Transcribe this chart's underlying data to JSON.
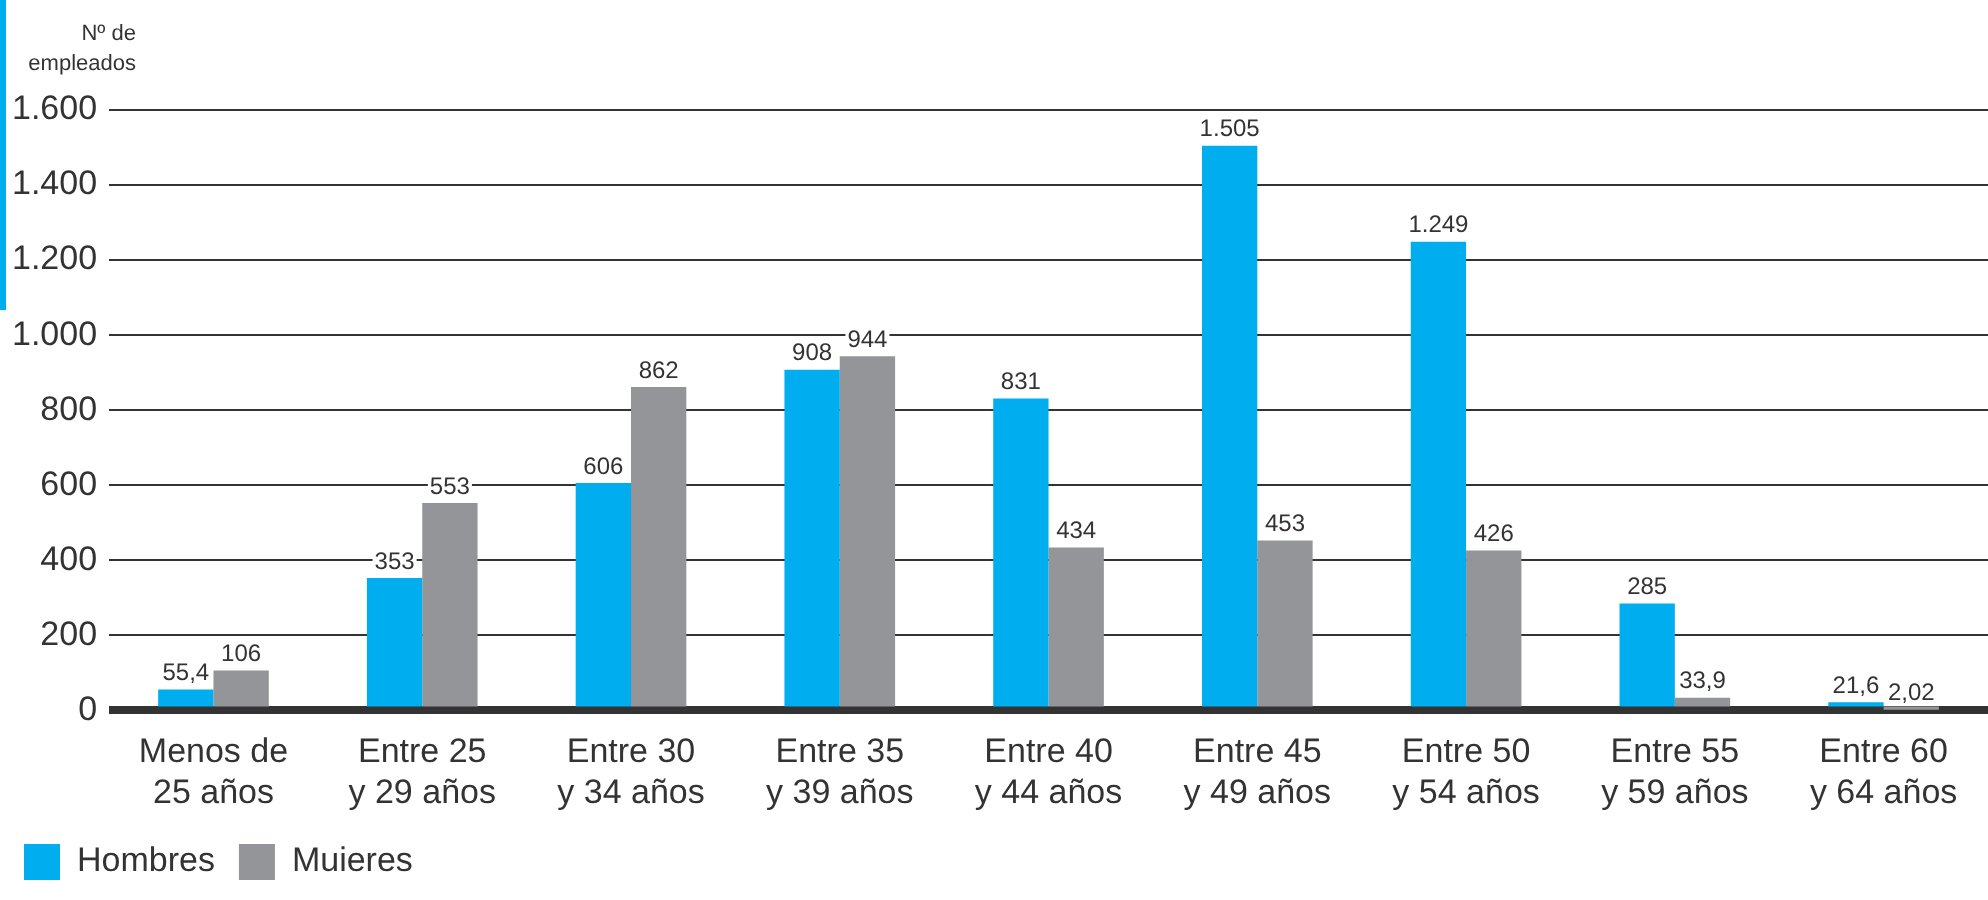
{
  "chart_data": {
    "type": "bar",
    "ylabel": "Nº de empleados",
    "categories": [
      "Menos de 25 años",
      "Entre 25 y 29 años",
      "Entre 30 y 34 años",
      "Entre 35 y 39 años",
      "Entre 40 y 44 años",
      "Entre 45 y 49 años",
      "Entre 50 y 54 años",
      "Entre 55 y 59 años",
      "Entre 60 y 64 años"
    ],
    "series": [
      {
        "name": "Hombres",
        "color": "#00aeef",
        "values": [
          55.4,
          353,
          606,
          908,
          831,
          1505,
          1249,
          285,
          21.6
        ],
        "value_labels": [
          "55,4",
          "353",
          "606",
          "908",
          "831",
          "1.505",
          "1.249",
          "285",
          "21,6"
        ]
      },
      {
        "name": "Muieres",
        "color": "#939598",
        "values": [
          106,
          553,
          862,
          944,
          434,
          453,
          426,
          33.9,
          2.02
        ],
        "value_labels": [
          "106",
          "553",
          "862",
          "944",
          "434",
          "453",
          "426",
          "33,9",
          "2,02"
        ]
      }
    ],
    "ylim": [
      0,
      1600
    ],
    "yticks": [
      {
        "value": 0,
        "label": "0"
      },
      {
        "value": 200,
        "label": "200"
      },
      {
        "value": 400,
        "label": "400"
      },
      {
        "value": 600,
        "label": "600"
      },
      {
        "value": 800,
        "label": "800"
      },
      {
        "value": 1000,
        "label": "1.000"
      },
      {
        "value": 1200,
        "label": "1.200"
      },
      {
        "value": 1400,
        "label": "1.400"
      },
      {
        "value": 1600,
        "label": "1.600"
      }
    ],
    "grid": "y",
    "legend": "bottom left"
  }
}
